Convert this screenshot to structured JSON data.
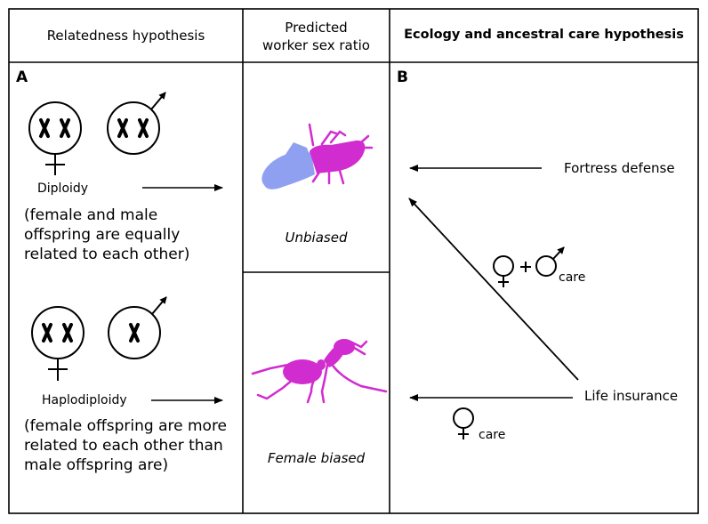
{
  "headers": {
    "relatedness": "Relatedness hypothesis",
    "predicted_line1": "Predicted",
    "predicted_line2": "worker sex ratio",
    "ecology": "Ecology and ancestral care hypothesis"
  },
  "panel_a": {
    "letter": "A",
    "diploidy_label": "Diploidy",
    "diploidy_note": "(female and male\noffspring are equally\nrelated to each other)",
    "haplodiploidy_label": "Haplodiploidy",
    "haplodiploidy_note": "(female offspring are more\nrelated to each other than\nmale offspring are)"
  },
  "middle": {
    "unbiased": "Unbiased",
    "female_biased": "Female biased"
  },
  "panel_b": {
    "letter": "B",
    "fortress_defense": "Fortress defense",
    "life_insurance": "Life insurance",
    "biparental_care_label": "care",
    "female_care_label": "care"
  },
  "colors": {
    "ant_magenta": "#d12ccf",
    "termite_blue": "#8fa0f0"
  },
  "icons": [
    "female-symbol",
    "male-symbol",
    "chromosome",
    "termite",
    "ant",
    "arrow"
  ]
}
